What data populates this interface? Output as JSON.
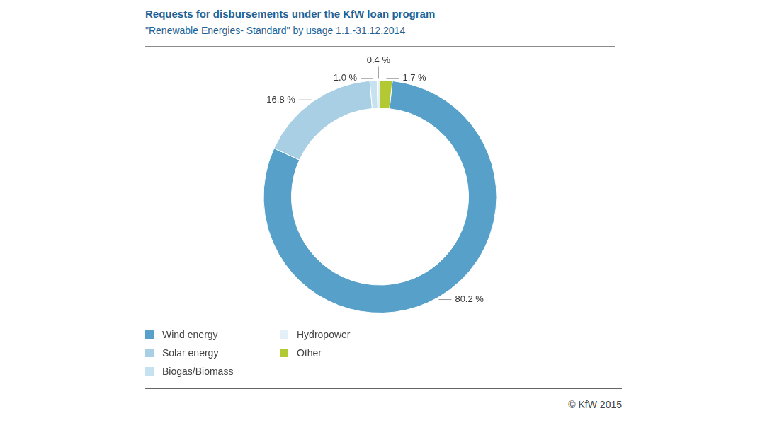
{
  "chart_data": {
    "type": "doughnut",
    "title": "Requests for disbursements under the KfW loan program",
    "subtitle": "\"Renewable Energies- Standard\" by usage 1.1.-31.12.2014",
    "categories": [
      "Wind energy",
      "Solar energy",
      "Biogas/Biomass",
      "Hydropower",
      "Other"
    ],
    "values": [
      80.2,
      16.8,
      1.0,
      0.4,
      1.7
    ],
    "value_labels": [
      "80.2 %",
      "16.8 %",
      "1.0 %",
      "0.4 %",
      "1.7 %"
    ],
    "colors": [
      "#57a0c9",
      "#a9cfe5",
      "#c6e1ef",
      "#e3f0f7",
      "#b3c934"
    ],
    "data_labels": true,
    "legend": "bottom",
    "annotations": [
      "© KfW 2015"
    ]
  }
}
